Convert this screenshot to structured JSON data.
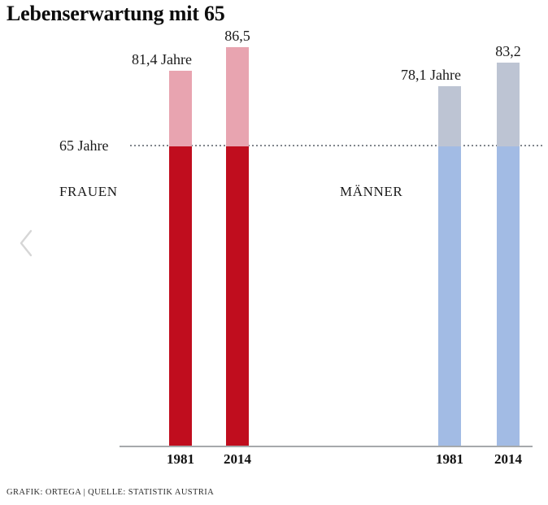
{
  "title": "Lebenserwartung mit 65",
  "footer": "GRAFIK: ORTEGA | QUELLE: STATISTIK AUSTRIA",
  "nav": {
    "prev_arrow_symbol": "‹"
  },
  "colors": {
    "frauen_below_65": "#c00d1e",
    "frauen_above_65": "#e8a4b0",
    "maenner_below_65": "#a2bbe4",
    "maenner_above_65": "#bdc4d3",
    "dotted_line": "#80868c",
    "axis_line": "#a6a9ac",
    "chevron": "#d6d6d6"
  },
  "chart_data": {
    "type": "bar",
    "title": "Lebenserwartung mit 65",
    "unit": "Jahre",
    "baseline": {
      "value": 65,
      "label": "65 Jahre"
    },
    "categories": [
      "1981",
      "2014"
    ],
    "ylim": [
      0,
      90
    ],
    "grid": "single horizontal dotted baseline at 65",
    "legend_position": "group labels inside plot",
    "groups": [
      {
        "name": "FRAUEN",
        "colors": {
          "below_65": "#c00d1e",
          "above_65": "#e8a4b0"
        },
        "bars": [
          {
            "year": "1981",
            "value": 81.4,
            "label": "81,4 Jahre"
          },
          {
            "year": "2014",
            "value": 86.5,
            "label": "86,5"
          }
        ]
      },
      {
        "name": "MÄNNER",
        "colors": {
          "below_65": "#a2bbe4",
          "above_65": "#bdc4d3"
        },
        "bars": [
          {
            "year": "1981",
            "value": 78.1,
            "label": "78,1 Jahre"
          },
          {
            "year": "2014",
            "value": 83.2,
            "label": "83,2"
          }
        ]
      }
    ]
  }
}
